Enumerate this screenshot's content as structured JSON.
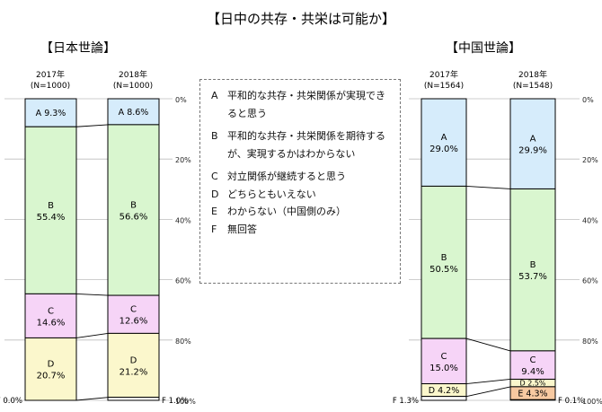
{
  "title": "【日中の共存・共栄は可能か】",
  "chart_data": {
    "type": "stacked-bar",
    "value_axis": {
      "ticks": [
        "0%",
        "20%",
        "40%",
        "60%",
        "80%",
        "100%"
      ],
      "range": [
        0,
        100
      ]
    },
    "legend": [
      {
        "key": "A",
        "text": "平和的な共存・共栄関係が実現できると思う"
      },
      {
        "key": "B",
        "text": "平和的な共存・共栄関係を期待するが、実現するかはわからない"
      },
      {
        "key": "C",
        "text": "対立関係が継続すると思う"
      },
      {
        "key": "D",
        "text": "どちらともいえない"
      },
      {
        "key": "E",
        "text": "わからない（中国側のみ）"
      },
      {
        "key": "F",
        "text": "無回答"
      }
    ],
    "colors": {
      "A": "#d6ecfb",
      "B": "#d9f6cf",
      "C": "#f6d4f7",
      "D": "#fbf7cc",
      "E": "#f7c9a1",
      "F": "#ffffff"
    },
    "panels": [
      {
        "title": "【日本世論】",
        "bars": [
          {
            "year": "2017年",
            "n": "(N=1000)",
            "segments": [
              {
                "key": "A",
                "value": 9.3,
                "label": "A 9.3%"
              },
              {
                "key": "B",
                "value": 55.4,
                "label": "B\n55.4%"
              },
              {
                "key": "C",
                "value": 14.6,
                "label": "C\n14.6%"
              },
              {
                "key": "D",
                "value": 20.7,
                "label": "D\n20.7%"
              },
              {
                "key": "F",
                "value": 0.0,
                "label": "F 0.0%"
              }
            ]
          },
          {
            "year": "2018年",
            "n": "(N=1000)",
            "segments": [
              {
                "key": "A",
                "value": 8.6,
                "label": "A 8.6%"
              },
              {
                "key": "B",
                "value": 56.6,
                "label": "B\n56.6%"
              },
              {
                "key": "C",
                "value": 12.6,
                "label": "C\n12.6%"
              },
              {
                "key": "D",
                "value": 21.2,
                "label": "D\n21.2%"
              },
              {
                "key": "F",
                "value": 1.0,
                "label": "F 1.0%"
              }
            ]
          }
        ]
      },
      {
        "title": "【中国世論】",
        "bars": [
          {
            "year": "2017年",
            "n": "(N=1564)",
            "segments": [
              {
                "key": "A",
                "value": 29.0,
                "label": "A\n29.0%"
              },
              {
                "key": "B",
                "value": 50.5,
                "label": "B\n50.5%"
              },
              {
                "key": "C",
                "value": 15.0,
                "label": "C\n15.0%"
              },
              {
                "key": "D",
                "value": 4.2,
                "label": "D 4.2%"
              },
              {
                "key": "F",
                "value": 1.3,
                "label": "F 1.3%"
              }
            ]
          },
          {
            "year": "2018年",
            "n": "(N=1548)",
            "segments": [
              {
                "key": "A",
                "value": 29.9,
                "label": "A\n29.9%"
              },
              {
                "key": "B",
                "value": 53.7,
                "label": "B\n53.7%"
              },
              {
                "key": "C",
                "value": 9.4,
                "label": "C\n9.4%"
              },
              {
                "key": "D",
                "value": 2.5,
                "label": "D 2.5%"
              },
              {
                "key": "E",
                "value": 4.3,
                "label": "E 4.3%"
              },
              {
                "key": "F",
                "value": 0.1,
                "label": "F 0.1%"
              }
            ]
          }
        ]
      }
    ]
  }
}
